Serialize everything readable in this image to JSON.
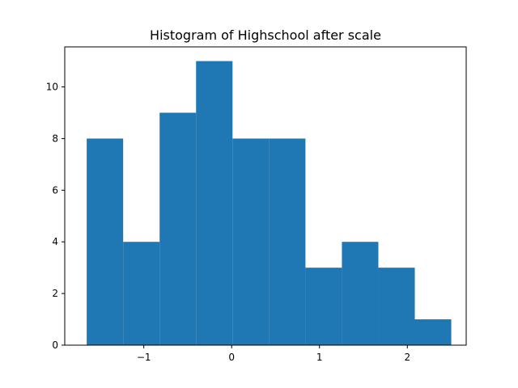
{
  "chart_data": {
    "type": "bar",
    "title": "Histogram of Highschool after scale",
    "xlabel": "",
    "ylabel": "",
    "bin_edges": [
      -1.65,
      -1.235,
      -0.82,
      -0.405,
      0.01,
      0.425,
      0.84,
      1.255,
      1.67,
      2.085,
      2.5
    ],
    "counts": [
      8,
      4,
      9,
      11,
      8,
      8,
      3,
      4,
      3,
      1
    ],
    "xlim": [
      -1.9,
      2.67
    ],
    "ylim": [
      0,
      11.55
    ],
    "xticks": [
      -1,
      0,
      1,
      2
    ],
    "xtick_labels": [
      "−1",
      "0",
      "1",
      "2"
    ],
    "yticks": [
      0,
      2,
      4,
      6,
      8,
      10
    ],
    "ytick_labels": [
      "0",
      "2",
      "4",
      "6",
      "8",
      "10"
    ],
    "bar_color": "#1f77b4",
    "grid": false,
    "legend": "none"
  }
}
